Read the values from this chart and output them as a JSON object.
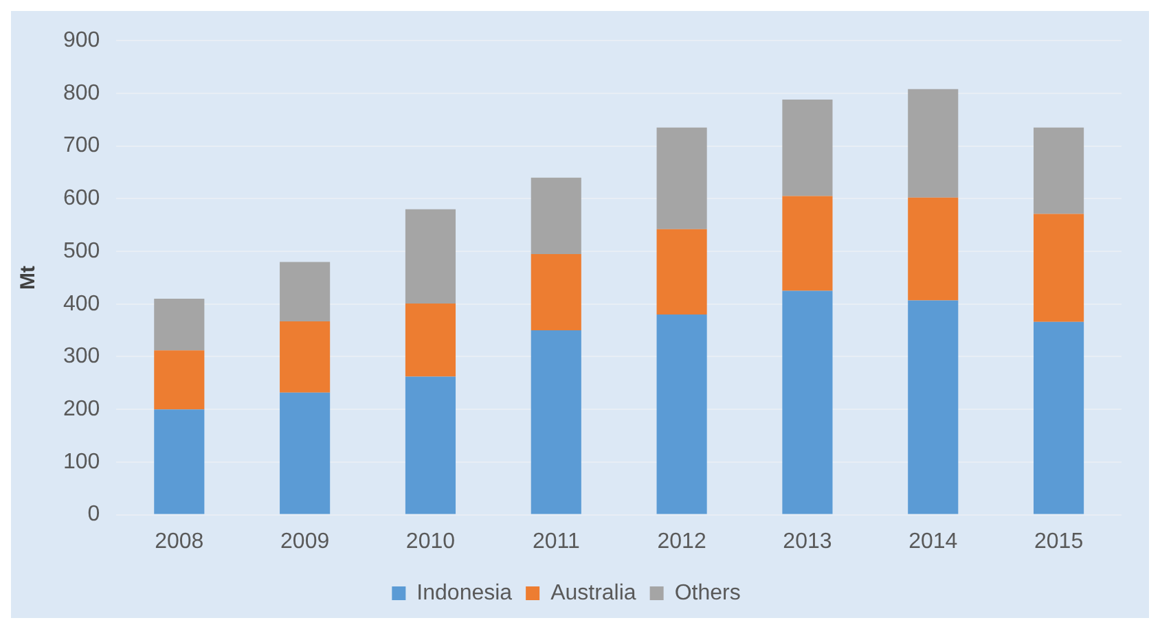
{
  "chart_data": {
    "type": "bar",
    "stacked": true,
    "ylabel": "Mt",
    "categories": [
      "2008",
      "2009",
      "2010",
      "2011",
      "2012",
      "2013",
      "2014",
      "2015"
    ],
    "series": [
      {
        "name": "Indonesia",
        "color": "#5b9bd5",
        "values": [
          200,
          232,
          262,
          350,
          380,
          425,
          407,
          366
        ]
      },
      {
        "name": "Australia",
        "color": "#ed7d31",
        "values": [
          112,
          135,
          139,
          145,
          162,
          180,
          195,
          205
        ]
      },
      {
        "name": "Others",
        "color": "#a5a5a5",
        "values": [
          98,
          113,
          179,
          145,
          193,
          183,
          206,
          164
        ]
      }
    ],
    "ylim": [
      0,
      900
    ],
    "yticks": [
      0,
      100,
      200,
      300,
      400,
      500,
      600,
      700,
      800,
      900
    ],
    "grid": "y",
    "legend": "bottom"
  }
}
